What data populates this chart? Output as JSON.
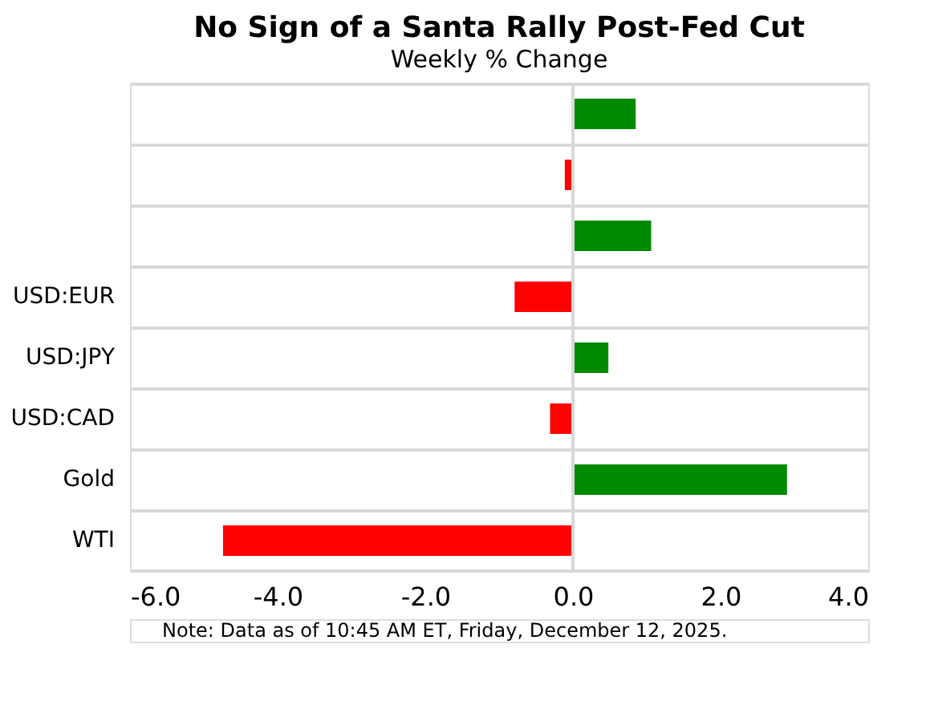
{
  "chart_data": {
    "type": "bar",
    "orientation": "horizontal",
    "title": "No Sign of a Santa Rally Post-Fed Cut",
    "subtitle": "Weekly % Change",
    "categories": [
      null,
      null,
      null,
      "USD:EUR",
      "USD:JPY",
      "USD:CAD",
      "Gold",
      "WTI"
    ],
    "values": [
      0.85,
      -0.11,
      1.06,
      -0.79,
      0.48,
      -0.31,
      2.9,
      -4.74
    ],
    "colors": [
      "#008a00",
      "#ff0000",
      "#008a00",
      "#ff0000",
      "#008a00",
      "#ff0000",
      "#008a00",
      "#ff0000"
    ],
    "xlim": [
      -6,
      4
    ],
    "xticks": [
      {
        "value": -6,
        "label": "-6.0"
      },
      {
        "value": -4,
        "label": "-4.0"
      },
      {
        "value": -2,
        "label": "-2.0"
      },
      {
        "value": 0,
        "label": "0.0"
      },
      {
        "value": 2,
        "label": "2.0"
      },
      {
        "value": 4,
        "label": "4.0"
      }
    ],
    "grid": "y",
    "ref_lines": [
      {
        "axis": "x",
        "value": 0,
        "color": "#d9d9d9"
      }
    ],
    "annotations": [
      "Note: Data as of 10:45 AM ET, Friday, December 12, 2025."
    ]
  }
}
